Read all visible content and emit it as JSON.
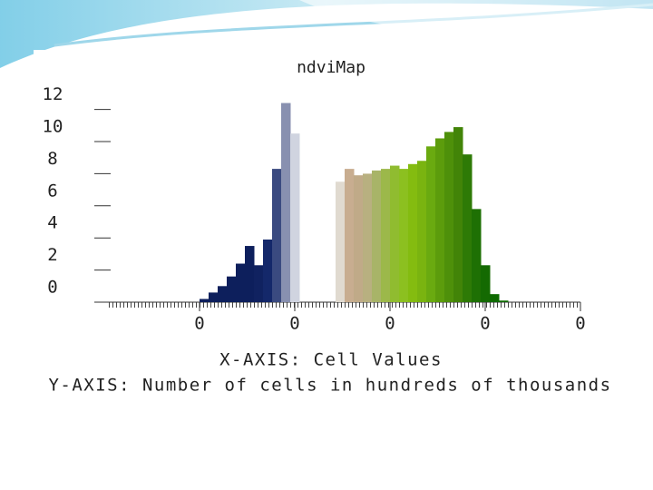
{
  "chart_data": {
    "type": "histogram",
    "title": "ndviMap",
    "xlabel": "X-AXIS: Cell Values",
    "ylabel": "Y-AXIS: Number of cells in hundreds of thousands",
    "bins": [
      0,
      1,
      2,
      3,
      4,
      5,
      6,
      7,
      8,
      9,
      10,
      11,
      12,
      13,
      14,
      15,
      16,
      17,
      18,
      19,
      20,
      21,
      22,
      23,
      24,
      25,
      26,
      27,
      28,
      29,
      30,
      31,
      32,
      33,
      34,
      35,
      36,
      37,
      38,
      39,
      40,
      41,
      42,
      43,
      44,
      45,
      46,
      47,
      48,
      49,
      50,
      51,
      52
    ],
    "values": [
      0,
      0,
      0,
      0,
      0,
      0,
      0,
      0,
      0,
      0,
      0.2,
      0.6,
      1.0,
      1.6,
      2.4,
      3.5,
      2.3,
      3.9,
      8.3,
      12.4,
      10.5,
      null,
      null,
      null,
      null,
      7.5,
      8.3,
      7.9,
      8.0,
      8.2,
      8.3,
      8.5,
      8.3,
      8.6,
      8.8,
      9.7,
      10.2,
      10.6,
      10.9,
      9.2,
      5.8,
      2.3,
      0.5,
      0.1,
      0,
      0,
      0,
      0,
      0,
      0,
      0,
      0
    ],
    "colors": [
      "#0d1f5c",
      "#0d1f5c",
      "#0d1f5c",
      "#0d1f5c",
      "#0d1f5c",
      "#0d1f5c",
      "#0d1f5c",
      "#0d1f5c",
      "#0d1f5c",
      "#0d1f5c",
      "#0d1f5c",
      "#0d1f5c",
      "#0d1f5c",
      "#0d1f5c",
      "#0d1f5c",
      "#0d1f5c",
      "#102260",
      "#14286a",
      "#3a4a80",
      "#8890b0",
      "#d0d4e0",
      "#ffffff",
      "#ffffff",
      "#ffffff",
      "#ffffff",
      "#e0dad0",
      "#c8ad90",
      "#c0aa88",
      "#b8b080",
      "#a8b468",
      "#9cb84a",
      "#90bc30",
      "#8cc020",
      "#84bc10",
      "#7ab410",
      "#6aaa10",
      "#5c9c0c",
      "#4e900a",
      "#428408",
      "#2e7a06",
      "#1e7004",
      "#146a02",
      "#0e6a00",
      "#0e6a00",
      "#0e6a00",
      "#0e6a00",
      "#0e6a00",
      "#0e6a00",
      "#0e6a00",
      "#0e6a00",
      "#0e6a00",
      "#0e6a00"
    ],
    "xlim": [
      0,
      52
    ],
    "xticks": [
      {
        "value": 10,
        "label": "0"
      },
      {
        "value": 20.5,
        "label": "0"
      },
      {
        "value": 31,
        "label": "0"
      },
      {
        "value": 41.5,
        "label": "0"
      },
      {
        "value": 52,
        "label": "0"
      }
    ],
    "ylim": [
      0,
      12.6
    ],
    "yticks": [
      0,
      2,
      4,
      6,
      8,
      10,
      12
    ]
  }
}
